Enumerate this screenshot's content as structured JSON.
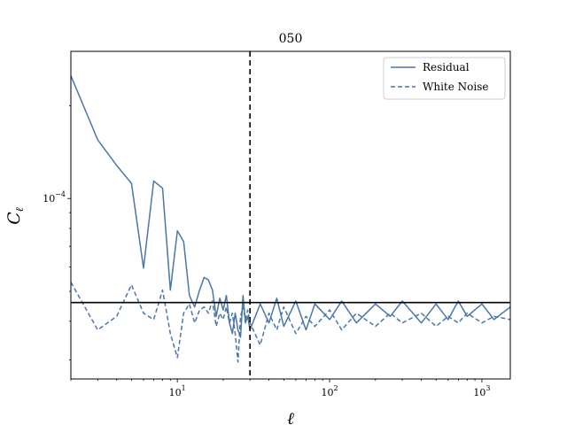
{
  "chart_data": {
    "type": "line",
    "title": "050",
    "xlabel": "ℓ",
    "ylabel_main": "C",
    "ylabel_sub": "ℓ",
    "xscale": "log",
    "yscale": "log",
    "xlim": [
      2,
      1536
    ],
    "ylim": [
      2.6e-05,
      0.0003
    ],
    "x_tick_labels": [
      {
        "value": 10,
        "base": "10",
        "exp": "1"
      },
      {
        "value": 100,
        "base": "10",
        "exp": "2"
      },
      {
        "value": 1000,
        "base": "10",
        "exp": "3"
      }
    ],
    "y_tick_labels": [
      {
        "value": 0.0001,
        "base": "10",
        "exp": "−4"
      }
    ],
    "vline_x": 30,
    "hline_y": 4.6e-05,
    "legend_position": "upper right",
    "series": [
      {
        "name": "Residual",
        "style": "solid",
        "color": "#4a76a8",
        "points": [
          [
            2,
            0.00025
          ],
          [
            3,
            0.000155
          ],
          [
            4,
            0.000128
          ],
          [
            5,
            0.000112
          ],
          [
            6,
            5.95e-05
          ],
          [
            7,
            0.000114
          ],
          [
            8,
            0.000108
          ],
          [
            9,
            5.05e-05
          ],
          [
            10,
            7.85e-05
          ],
          [
            11,
            7.25e-05
          ],
          [
            12,
            4.85e-05
          ],
          [
            13,
            4.45e-05
          ],
          [
            14,
            5.05e-05
          ],
          [
            15,
            5.55e-05
          ],
          [
            16,
            5.45e-05
          ],
          [
            17,
            5.05e-05
          ],
          [
            18,
            4.15e-05
          ],
          [
            19,
            4.75e-05
          ],
          [
            20,
            4.35e-05
          ],
          [
            21,
            4.85e-05
          ],
          [
            22,
            3.95e-05
          ],
          [
            23,
            3.65e-05
          ],
          [
            24,
            4.25e-05
          ],
          [
            25,
            3.75e-05
          ],
          [
            26,
            3.55e-05
          ],
          [
            27,
            4.85e-05
          ],
          [
            28,
            3.95e-05
          ],
          [
            29,
            4.15e-05
          ],
          [
            30,
            3.75e-05
          ],
          [
            35,
            4.55e-05
          ],
          [
            40,
            3.95e-05
          ],
          [
            45,
            4.75e-05
          ],
          [
            50,
            3.85e-05
          ],
          [
            60,
            4.65e-05
          ],
          [
            70,
            3.75e-05
          ],
          [
            80,
            4.55e-05
          ],
          [
            100,
            4.05e-05
          ],
          [
            120,
            4.65e-05
          ],
          [
            150,
            3.95e-05
          ],
          [
            200,
            4.55e-05
          ],
          [
            250,
            4.15e-05
          ],
          [
            300,
            4.65e-05
          ],
          [
            400,
            3.95e-05
          ],
          [
            500,
            4.55e-05
          ],
          [
            600,
            4.05e-05
          ],
          [
            700,
            4.65e-05
          ],
          [
            800,
            4.15e-05
          ],
          [
            1000,
            4.55e-05
          ],
          [
            1200,
            4.05e-05
          ],
          [
            1536,
            4.45e-05
          ]
        ]
      },
      {
        "name": "White Noise",
        "style": "dashed",
        "color": "#4a76a8",
        "points": [
          [
            2,
            5.35e-05
          ],
          [
            3,
            3.75e-05
          ],
          [
            4,
            4.15e-05
          ],
          [
            5,
            5.25e-05
          ],
          [
            6,
            4.25e-05
          ],
          [
            7,
            4.05e-05
          ],
          [
            8,
            5.05e-05
          ],
          [
            9,
            3.65e-05
          ],
          [
            10,
            3.05e-05
          ],
          [
            11,
            4.25e-05
          ],
          [
            12,
            4.55e-05
          ],
          [
            13,
            3.95e-05
          ],
          [
            14,
            4.35e-05
          ],
          [
            15,
            4.45e-05
          ],
          [
            16,
            4.25e-05
          ],
          [
            17,
            4.65e-05
          ],
          [
            18,
            3.85e-05
          ],
          [
            19,
            4.25e-05
          ],
          [
            20,
            4.05e-05
          ],
          [
            21,
            4.45e-05
          ],
          [
            22,
            3.95e-05
          ],
          [
            23,
            4.25e-05
          ],
          [
            24,
            3.65e-05
          ],
          [
            25,
            2.95e-05
          ],
          [
            26,
            4.15e-05
          ],
          [
            27,
            4.45e-05
          ],
          [
            28,
            4.05e-05
          ],
          [
            29,
            4.35e-05
          ],
          [
            30,
            3.95e-05
          ],
          [
            35,
            3.35e-05
          ],
          [
            40,
            4.25e-05
          ],
          [
            45,
            3.75e-05
          ],
          [
            50,
            4.45e-05
          ],
          [
            60,
            3.65e-05
          ],
          [
            70,
            4.15e-05
          ],
          [
            80,
            3.85e-05
          ],
          [
            100,
            4.35e-05
          ],
          [
            120,
            3.75e-05
          ],
          [
            150,
            4.25e-05
          ],
          [
            200,
            3.85e-05
          ],
          [
            250,
            4.25e-05
          ],
          [
            300,
            3.95e-05
          ],
          [
            400,
            4.25e-05
          ],
          [
            500,
            3.85e-05
          ],
          [
            600,
            4.15e-05
          ],
          [
            700,
            3.95e-05
          ],
          [
            800,
            4.25e-05
          ],
          [
            1000,
            3.95e-05
          ],
          [
            1200,
            4.15e-05
          ],
          [
            1536,
            4.05e-05
          ]
        ]
      }
    ]
  }
}
